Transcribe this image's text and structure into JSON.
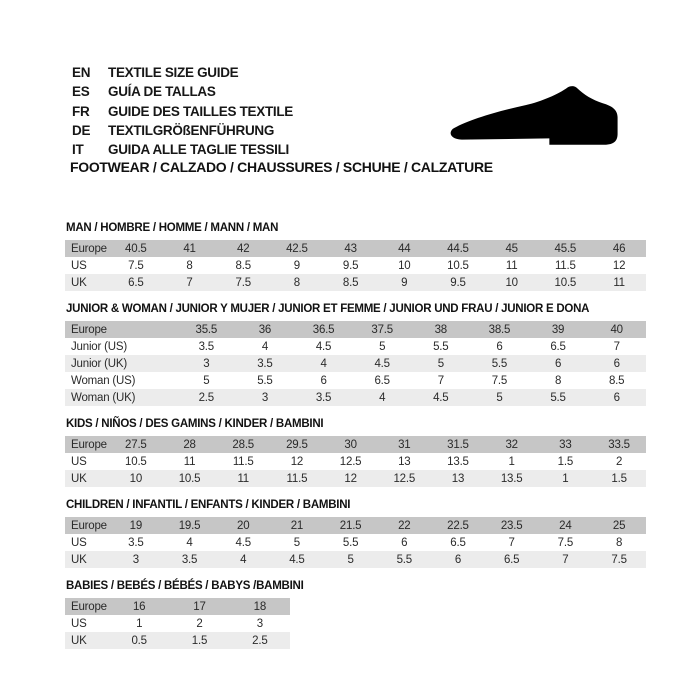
{
  "header": {
    "languages": [
      {
        "code": "EN",
        "label": "TEXTILE SIZE GUIDE"
      },
      {
        "code": "ES",
        "label": "GUÍA DE TALLAS"
      },
      {
        "code": "FR",
        "label": "GUIDE DES TAILLES TEXTILE"
      },
      {
        "code": "DE",
        "label": "TEXTILGRÖßENFÜHRUNG"
      },
      {
        "code": "IT",
        "label": "GUIDA ALLE TAGLIE TESSILI"
      }
    ],
    "category_title": "FOOTWEAR / CALZADO / CHAUSSURES / SCHUHE / CALZATURE",
    "icon": "dress-shoe-silhouette"
  },
  "colors": {
    "background": "#ffffff",
    "europe_row_bg": "#c6c6c6",
    "alt_row_bg": "#ececec",
    "text": "#1e1e1e",
    "icon": "#000000"
  },
  "tables": [
    {
      "title": "MAN / HOMBRE / HOMME / MANN / MAN",
      "label_col_width": 44,
      "narrow": false,
      "rows": [
        {
          "label": "Europe",
          "values": [
            "40.5",
            "41",
            "42",
            "42.5",
            "43",
            "44",
            "44.5",
            "45",
            "45.5",
            "46"
          ]
        },
        {
          "label": "US",
          "values": [
            "7.5",
            "8",
            "8.5",
            "9",
            "9.5",
            "10",
            "10.5",
            "11",
            "11.5",
            "12"
          ]
        },
        {
          "label": "UK",
          "values": [
            "6.5",
            "7",
            "7.5",
            "8",
            "8.5",
            "9",
            "9.5",
            "10",
            "10.5",
            "11"
          ]
        }
      ]
    },
    {
      "title": "JUNIOR & WOMAN / JUNIOR Y MUJER / JUNIOR ET FEMME / JUNIOR UND FRAU / JUNIOR E DONA",
      "label_col_width": 112,
      "narrow": false,
      "rows": [
        {
          "label": "Europe",
          "values": [
            "35.5",
            "36",
            "36.5",
            "37.5",
            "38",
            "38.5",
            "39",
            "40"
          ]
        },
        {
          "label": "Junior (US)",
          "values": [
            "3.5",
            "4",
            "4.5",
            "5",
            "5.5",
            "6",
            "6.5",
            "7"
          ]
        },
        {
          "label": "Junior (UK)",
          "values": [
            "3",
            "3.5",
            "4",
            "4.5",
            "5",
            "5.5",
            "6",
            "6"
          ]
        },
        {
          "label": "Woman (US)",
          "values": [
            "5",
            "5.5",
            "6",
            "6.5",
            "7",
            "7.5",
            "8",
            "8.5"
          ]
        },
        {
          "label": "Woman (UK)",
          "values": [
            "2.5",
            "3",
            "3.5",
            "4",
            "4.5",
            "5",
            "5.5",
            "6"
          ]
        }
      ]
    },
    {
      "title": "KIDS / NIÑOS / DES GAMINS / KINDER / BAMBINI",
      "label_col_width": 44,
      "narrow": false,
      "rows": [
        {
          "label": "Europe",
          "values": [
            "27.5",
            "28",
            "28.5",
            "29.5",
            "30",
            "31",
            "31.5",
            "32",
            "33",
            "33.5"
          ]
        },
        {
          "label": "US",
          "values": [
            "10.5",
            "11",
            "11.5",
            "12",
            "12.5",
            "13",
            "13.5",
            "1",
            "1.5",
            "2"
          ]
        },
        {
          "label": "UK",
          "values": [
            "10",
            "10.5",
            "11",
            "11.5",
            "12",
            "12.5",
            "13",
            "13.5",
            "1",
            "1.5"
          ]
        }
      ]
    },
    {
      "title": "CHILDREN / INFANTIL / ENFANTS / KINDER / BAMBINI",
      "label_col_width": 44,
      "narrow": false,
      "rows": [
        {
          "label": "Europe",
          "values": [
            "19",
            "19.5",
            "20",
            "21",
            "21.5",
            "22",
            "22.5",
            "23.5",
            "24",
            "25"
          ]
        },
        {
          "label": "US",
          "values": [
            "3.5",
            "4",
            "4.5",
            "5",
            "5.5",
            "6",
            "6.5",
            "7",
            "7.5",
            "8"
          ]
        },
        {
          "label": "UK",
          "values": [
            "3",
            "3.5",
            "4",
            "4.5",
            "5",
            "5.5",
            "6",
            "6.5",
            "7",
            "7.5"
          ]
        }
      ]
    },
    {
      "title": "BABIES / BEBÉS / BÉBÉS / BABYS /BAMBINI",
      "label_col_width": 44,
      "narrow": true,
      "rows": [
        {
          "label": "Europe",
          "values": [
            "16",
            "17",
            "18"
          ]
        },
        {
          "label": "US",
          "values": [
            "1",
            "2",
            "3"
          ]
        },
        {
          "label": "UK",
          "values": [
            "0.5",
            "1.5",
            "2.5"
          ]
        }
      ]
    }
  ]
}
